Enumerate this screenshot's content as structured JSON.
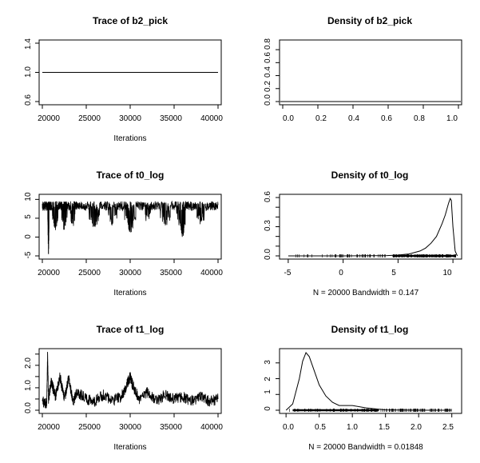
{
  "chart_data": [
    {
      "type": "line",
      "title": "Trace of b2_pick",
      "xlabel": "Iterations",
      "ylabel": "",
      "xlim": [
        20000,
        40000
      ],
      "ylim": [
        0.6,
        1.4
      ],
      "xticks": [
        20000,
        25000,
        30000,
        35000,
        40000
      ],
      "yticks": [
        0.6,
        1.0,
        1.4
      ],
      "ytick_labels": [
        "0.6",
        "1.0",
        "1.4"
      ],
      "x": [
        20000,
        40000
      ],
      "y": [
        1.0,
        1.0
      ]
    },
    {
      "type": "line",
      "title": "Density of b2_pick",
      "xlabel": "",
      "ylabel": "",
      "xlim": [
        0.0,
        1.0
      ],
      "ylim": [
        0.0,
        0.9
      ],
      "xticks": [
        0.0,
        0.2,
        0.4,
        0.6,
        0.8,
        1.0
      ],
      "xtick_labels": [
        "0.0",
        "0.2",
        "0.4",
        "0.6",
        "0.8",
        "1.0"
      ],
      "yticks": [
        0.0,
        0.2,
        0.4,
        0.6,
        0.8
      ],
      "ytick_labels": [
        "0.0",
        "0.2",
        "0.4",
        "0.6",
        "0.8"
      ],
      "x": [],
      "y": []
    },
    {
      "type": "line",
      "title": "Trace of t0_log",
      "xlabel": "Iterations",
      "ylabel": "",
      "xlim": [
        20000,
        40000
      ],
      "ylim": [
        -5,
        10.5
      ],
      "xticks": [
        20000,
        25000,
        30000,
        35000,
        40000
      ],
      "yticks": [
        -5,
        0,
        5,
        10
      ],
      "ytick_labels": [
        "-5",
        "0",
        "5",
        "10"
      ],
      "x": [
        20000,
        20300,
        20600,
        20700,
        20800,
        21000,
        21500,
        22000,
        22500,
        23000,
        23500,
        24000,
        25000,
        26000,
        27000,
        28000,
        29000,
        30000,
        31000,
        32000,
        33000,
        34000,
        35000,
        36000,
        36500,
        37000,
        38000,
        39000,
        40000
      ],
      "y": [
        9.0,
        7.5,
        9.0,
        -4.5,
        9.5,
        8.0,
        4.0,
        9.0,
        3.5,
        8.5,
        4.5,
        9.0,
        8.0,
        4.0,
        9.0,
        5.0,
        9.0,
        3.0,
        9.0,
        6.0,
        9.0,
        4.5,
        9.0,
        2.0,
        8.5,
        9.0,
        5.5,
        9.0,
        8.5
      ]
    },
    {
      "type": "line",
      "title": "Density of t0_log",
      "xlabel": "N = 20000   Bandwidth = 0.147",
      "ylabel": "",
      "xlim": [
        -5.5,
        10.5
      ],
      "ylim": [
        0.0,
        0.6
      ],
      "xticks": [
        -5,
        0,
        5,
        10
      ],
      "xtick_labels": [
        "-5",
        "0",
        "5",
        "10"
      ],
      "yticks": [
        0.0,
        0.1,
        0.2,
        0.3,
        0.4,
        0.5,
        0.6
      ],
      "ytick_labels": [
        "0.0",
        "",
        "",
        "0.3",
        "",
        "",
        "0.6"
      ],
      "x": [
        -5.0,
        0.0,
        4.0,
        5.0,
        6.0,
        7.0,
        7.5,
        8.0,
        8.5,
        9.0,
        9.3,
        9.6,
        9.75,
        9.85,
        10.0,
        10.2,
        10.4
      ],
      "y": [
        0.0,
        0.0,
        0.003,
        0.008,
        0.02,
        0.05,
        0.08,
        0.13,
        0.2,
        0.33,
        0.42,
        0.54,
        0.59,
        0.57,
        0.3,
        0.05,
        0.0
      ]
    },
    {
      "type": "line",
      "title": "Trace of t1_log",
      "xlabel": "Iterations",
      "ylabel": "",
      "xlim": [
        20000,
        40000
      ],
      "ylim": [
        0.0,
        2.6
      ],
      "xticks": [
        20000,
        25000,
        30000,
        35000,
        40000
      ],
      "yticks": [
        0.0,
        0.5,
        1.0,
        1.5,
        2.0,
        2.5
      ],
      "ytick_labels": [
        "0.0",
        "",
        "1.0",
        "",
        "2.0",
        ""
      ],
      "x": [
        20000,
        20500,
        20600,
        20700,
        21000,
        21500,
        22000,
        22500,
        23000,
        23500,
        24000,
        25000,
        26000,
        27000,
        28000,
        29000,
        29700,
        30000,
        30300,
        31000,
        32000,
        33000,
        34000,
        35000,
        36000,
        37000,
        38000,
        39000,
        40000
      ],
      "y": [
        0.4,
        0.3,
        2.5,
        0.5,
        1.3,
        0.6,
        1.5,
        0.5,
        1.4,
        0.4,
        0.8,
        0.5,
        0.4,
        0.7,
        0.4,
        0.6,
        1.2,
        1.5,
        1.1,
        0.5,
        0.8,
        0.4,
        0.7,
        0.5,
        0.6,
        0.4,
        0.6,
        0.4,
        0.5
      ]
    },
    {
      "type": "line",
      "title": "Density of t1_log",
      "xlabel": "N = 20000   Bandwidth = 0.01848",
      "ylabel": "",
      "xlim": [
        -0.05,
        2.6
      ],
      "ylim": [
        0.0,
        3.7
      ],
      "xticks": [
        0.0,
        0.5,
        1.0,
        1.5,
        2.0,
        2.5
      ],
      "xtick_labels": [
        "0.0",
        "0.5",
        "1.0",
        "1.5",
        "2.0",
        "2.5"
      ],
      "yticks": [
        0,
        1,
        2,
        3
      ],
      "ytick_labels": [
        "0",
        "1",
        "2",
        "3"
      ],
      "x": [
        0.0,
        0.1,
        0.2,
        0.25,
        0.3,
        0.35,
        0.4,
        0.5,
        0.6,
        0.7,
        0.8,
        1.0,
        1.2,
        1.5,
        2.0,
        2.5
      ],
      "y": [
        0.0,
        0.4,
        2.0,
        3.1,
        3.65,
        3.4,
        2.8,
        1.6,
        0.9,
        0.5,
        0.3,
        0.3,
        0.15,
        0.02,
        0.0,
        0.0
      ]
    }
  ]
}
